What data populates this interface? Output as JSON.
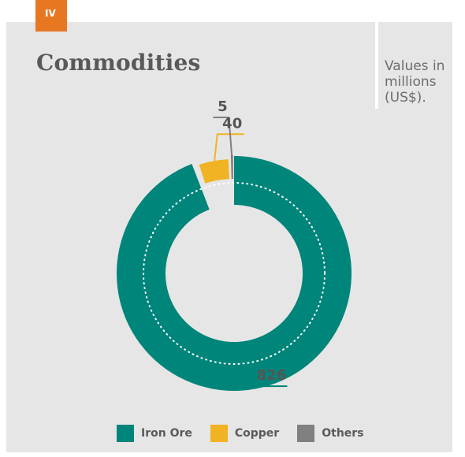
{
  "badge": "IV",
  "title": "Commodities",
  "note": "Values in millions (US$).",
  "chart_data": {
    "type": "pie",
    "style": "donut",
    "title": "Commodities",
    "categories": [
      "Iron Ore",
      "Copper",
      "Others"
    ],
    "values": [
      826,
      40,
      5
    ],
    "data_labels": [
      "826",
      "40",
      "5"
    ],
    "colors": [
      "#00857a",
      "#f0b323",
      "#808080"
    ],
    "legend_position": "bottom"
  }
}
